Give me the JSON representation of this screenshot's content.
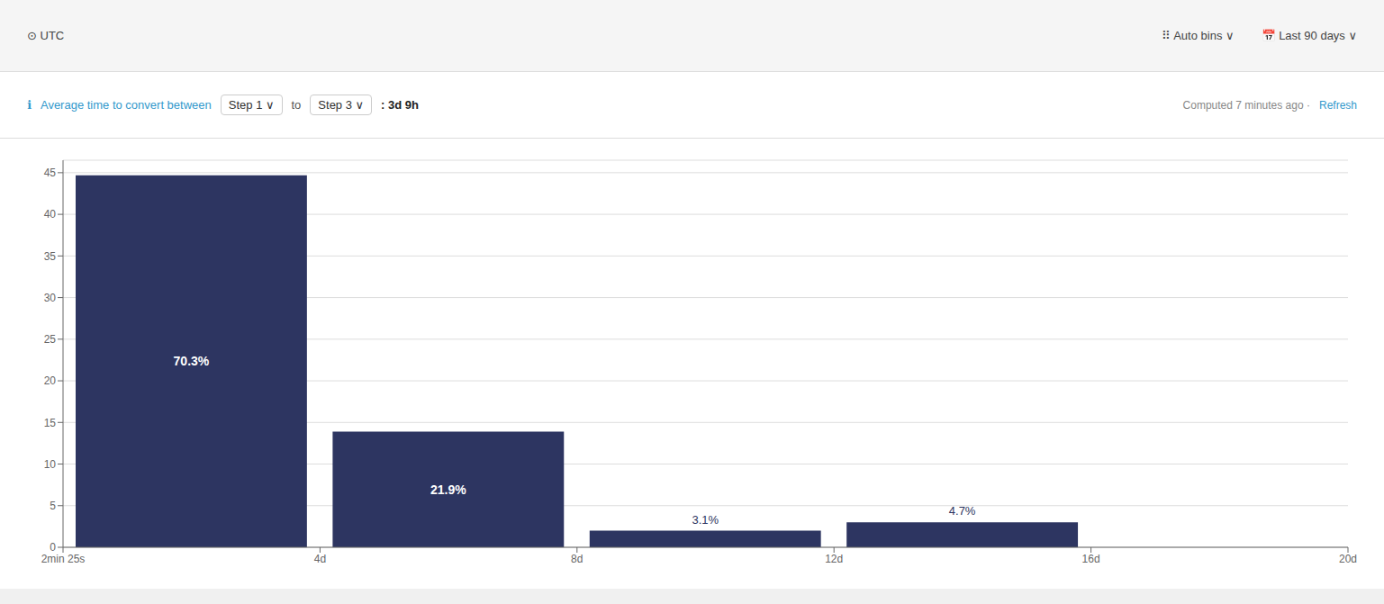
{
  "chart_data": {
    "type": "histogram",
    "bins": [
      0,
      4,
      8,
      12,
      16
    ],
    "values": [
      44.7,
      13.9,
      2.0,
      3.0
    ],
    "value_labels": [
      "70.3%",
      "21.9%",
      "3.1%",
      "4.7%"
    ],
    "data_labels": true,
    "color": "#2d3561",
    "xlim": [
      0,
      20
    ],
    "xticks": [
      {
        "value": 0,
        "label": "2min 25s"
      },
      {
        "value": 4,
        "label": "4d"
      },
      {
        "value": 8,
        "label": "8d"
      },
      {
        "value": 12,
        "label": "12d"
      },
      {
        "value": 16,
        "label": "16d"
      },
      {
        "value": 20,
        "label": "20d"
      }
    ],
    "ylim": [
      0,
      46.5
    ],
    "yticks": [
      0,
      5,
      10,
      15,
      20,
      25,
      30,
      35,
      40,
      45
    ],
    "grid": true,
    "annotations": [
      "⊙ UTC",
      "⠿ Auto bins  ∨",
      "📅 Last 90 days  ∨",
      "ℹ",
      "Average time to convert between",
      "Step 1 ∨",
      "to",
      "Step 3 ∨",
      ": 3d 9h",
      "Computed 7 minutes ago ·",
      "Refresh"
    ]
  }
}
